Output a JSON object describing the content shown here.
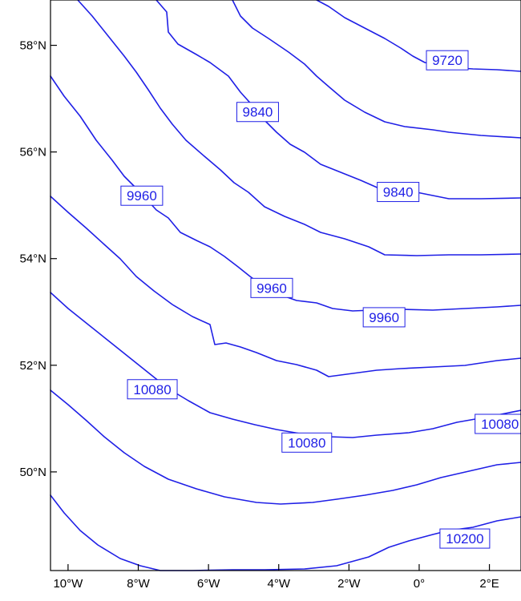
{
  "map": {
    "type": "contour",
    "line_color": "#1f1fe6",
    "frame_color": "#000000",
    "lon_range": [
      -10.5,
      2.9
    ],
    "lat_range": [
      48.15,
      58.85
    ],
    "lon_ticks": [
      {
        "value": -10,
        "label": "10°W"
      },
      {
        "value": -8,
        "label": "8°W"
      },
      {
        "value": -6,
        "label": "6°W"
      },
      {
        "value": -4,
        "label": "4°W"
      },
      {
        "value": -2,
        "label": "2°W"
      },
      {
        "value": 0,
        "label": "0°"
      },
      {
        "value": 2,
        "label": "2°E"
      }
    ],
    "lat_ticks": [
      {
        "value": 58,
        "label": "58°N"
      },
      {
        "value": 56,
        "label": "56°N"
      },
      {
        "value": 54,
        "label": "54°N"
      },
      {
        "value": 52,
        "label": "52°N"
      },
      {
        "value": 50,
        "label": "50°N"
      }
    ],
    "contour_labels": [
      {
        "text": "9720",
        "lon": 0.8,
        "lat": 57.72
      },
      {
        "text": "9840",
        "lon": -4.6,
        "lat": 56.75
      },
      {
        "text": "9840",
        "lon": -0.6,
        "lat": 55.25
      },
      {
        "text": "9960",
        "lon": -7.9,
        "lat": 55.18
      },
      {
        "text": "9960",
        "lon": -4.2,
        "lat": 53.45
      },
      {
        "text": "9960",
        "lon": -1.0,
        "lat": 52.9
      },
      {
        "text": "10080",
        "lon": -7.6,
        "lat": 51.55
      },
      {
        "text": "10080",
        "lon": -3.2,
        "lat": 50.55
      },
      {
        "text": "10080",
        "lon": 2.3,
        "lat": 50.9
      },
      {
        "text": "10200",
        "lon": 1.3,
        "lat": 48.75
      }
    ]
  }
}
